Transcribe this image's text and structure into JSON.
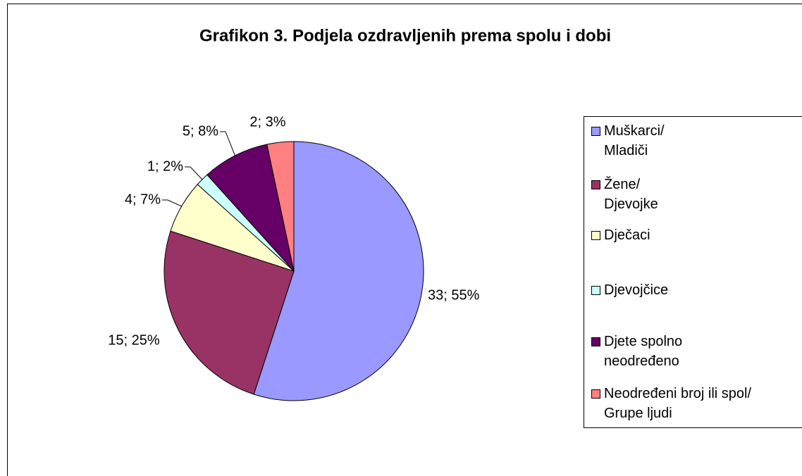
{
  "chart_data": {
    "type": "pie",
    "title": "Grafikon 3. Podjela ozdravljenih prema spolu i dobi",
    "categories": [
      "Muškarci/\nMladiči",
      "Žene/\nDjevojke",
      "Dječaci",
      "Djevojčice",
      "Djete spolno\nneodređeno",
      "Neodređeni broj ili spol/\nGrupe ljudi"
    ],
    "values": [
      33,
      15,
      4,
      1,
      5,
      2
    ],
    "value_labels": [
      "33; 55%",
      "15; 25%",
      "4; 7%",
      "1; 2%",
      "5; 8%",
      "2; 3%"
    ],
    "colors": [
      "#9999ff",
      "#993366",
      "#ffffcc",
      "#ccffff",
      "#660066",
      "#ff8080"
    ],
    "legend": "right"
  }
}
